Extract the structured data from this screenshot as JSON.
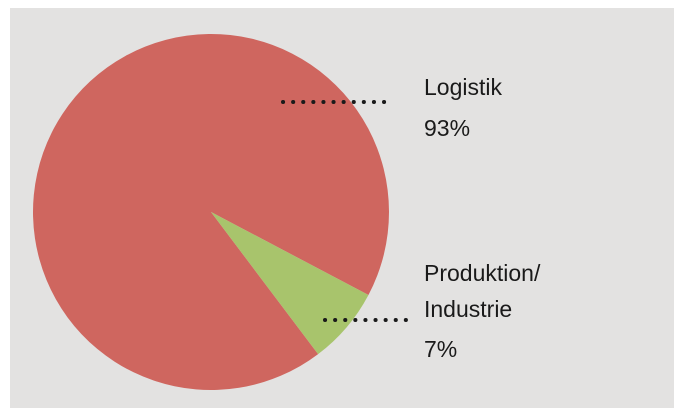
{
  "chart_data": {
    "type": "pie",
    "title": "",
    "slices": [
      {
        "name": "Logistik",
        "label": "Logistik",
        "value": 93,
        "value_label": "93%",
        "color": "#cf665f"
      },
      {
        "name": "Produktion/Industrie",
        "label_lines": [
          "Produktion/",
          "Industrie"
        ],
        "value": 7,
        "value_label": "7%",
        "color": "#a8c46c"
      }
    ],
    "background": "#e3e2e1"
  }
}
